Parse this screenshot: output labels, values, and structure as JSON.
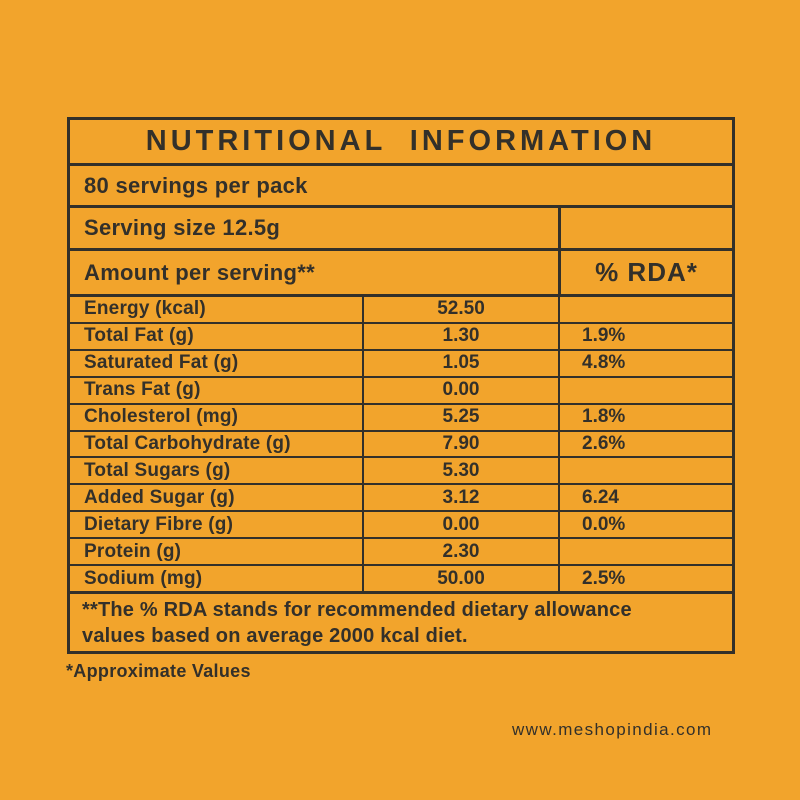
{
  "page": {
    "background_color": "#F2A42C",
    "text_color": "#33302A",
    "approximate_note": "*Approximate Values",
    "website": "www.meshopindia.com"
  },
  "label": {
    "title": "NUTRITIONAL INFORMATION",
    "servings_per_pack": "80 servings per pack",
    "serving_size": "Serving size 12.5g",
    "amount_header": "Amount per serving**",
    "rda_header": "% RDA*",
    "rows": [
      {
        "name": "Energy (kcal)",
        "amount": "52.50",
        "rda": ""
      },
      {
        "name": "Total Fat (g)",
        "amount": "1.30",
        "rda": "1.9%"
      },
      {
        "name": "Saturated Fat (g)",
        "amount": "1.05",
        "rda": "4.8%"
      },
      {
        "name": "Trans Fat (g)",
        "amount": "0.00",
        "rda": ""
      },
      {
        "name": "Cholesterol (mg)",
        "amount": "5.25",
        "rda": "1.8%"
      },
      {
        "name": "Total Carbohydrate (g)",
        "amount": "7.90",
        "rda": "2.6%"
      },
      {
        "name": "Total Sugars (g)",
        "amount": "5.30",
        "rda": ""
      },
      {
        "name": "Added  Sugar (g)",
        "amount": "3.12",
        "rda": "6.24"
      },
      {
        "name": "Dietary Fibre (g)",
        "amount": "0.00",
        "rda": "0.0%"
      },
      {
        "name": "Protein (g)",
        "amount": "2.30",
        "rda": ""
      },
      {
        "name": "Sodium (mg)",
        "amount": "50.00",
        "rda": "2.5%"
      }
    ],
    "footnote_line1": "**The % RDA stands for recommended dietary allowance",
    "footnote_line2": "values based on average 2000 kcal diet."
  }
}
